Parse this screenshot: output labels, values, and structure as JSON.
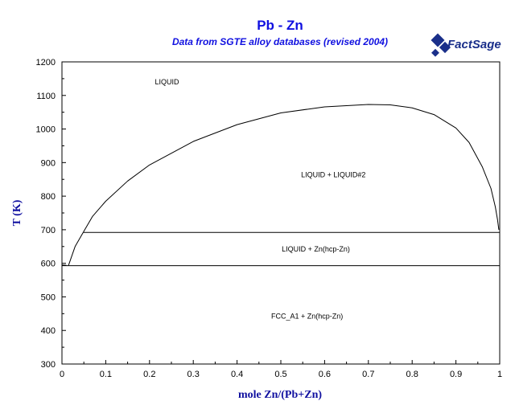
{
  "chart_data": {
    "type": "line",
    "title": "Pb - Zn",
    "subtitle": "Data from SGTE alloy databases (revised 2004)",
    "xlabel": "mole Zn/(Pb+Zn)",
    "ylabel": "T (K)",
    "xlim": [
      0,
      1
    ],
    "ylim": [
      300,
      1200
    ],
    "x_ticks": [
      "0",
      "0.1",
      "0.2",
      "0.3",
      "0.4",
      "0.5",
      "0.6",
      "0.7",
      "0.8",
      "0.9",
      "1"
    ],
    "y_ticks": [
      "300",
      "400",
      "500",
      "600",
      "700",
      "800",
      "900",
      "1000",
      "1100",
      "1200"
    ],
    "grid": false,
    "series": [
      {
        "name": "",
        "points": [
          [
            0.049,
            693
          ],
          [
            0.07,
            740
          ],
          [
            0.1,
            785
          ],
          [
            0.15,
            845
          ],
          [
            0.2,
            893
          ],
          [
            0.3,
            963
          ],
          [
            0.4,
            1013
          ],
          [
            0.5,
            1048
          ],
          [
            0.6,
            1066
          ],
          [
            0.7,
            1073
          ],
          [
            0.75,
            1072
          ],
          [
            0.8,
            1063
          ],
          [
            0.85,
            1043
          ],
          [
            0.9,
            1003
          ],
          [
            0.93,
            960
          ],
          [
            0.96,
            888
          ],
          [
            0.98,
            823
          ],
          [
            0.99,
            768
          ],
          [
            0.995,
            730
          ],
          [
            0.998,
            700
          ]
        ]
      },
      {
        "name": "",
        "points": [
          [
            0.049,
            693
          ],
          [
            0.03,
            650
          ],
          [
            0.015,
            594
          ]
        ]
      },
      {
        "name": "",
        "points": [
          [
            0.0,
            595
          ],
          [
            0.01,
            594
          ]
        ]
      },
      {
        "name": "",
        "points": [
          [
            0.0,
            595
          ],
          [
            0.0,
            555
          ]
        ]
      },
      {
        "name": "",
        "points": [
          [
            0.049,
            692
          ],
          [
            1.0,
            692
          ]
        ]
      },
      {
        "name": "",
        "points": [
          [
            0.0,
            593
          ],
          [
            1.0,
            593
          ]
        ]
      }
    ],
    "annotations": [
      {
        "text": "LIQUID",
        "x": 0.24,
        "y": 1140
      },
      {
        "text": "LIQUID + LIQUID#2",
        "x": 0.62,
        "y": 864
      },
      {
        "text": "LIQUID + Zn(hcp-Zn)",
        "x": 0.58,
        "y": 642
      },
      {
        "text": "FCC_A1 + Zn(hcp-Zn)",
        "x": 0.56,
        "y": 443
      }
    ],
    "logo_text": "FactSage",
    "colors": {
      "title": "#1010e0",
      "axis_label": "#1010a0",
      "logo": "#1a2f8a"
    }
  }
}
